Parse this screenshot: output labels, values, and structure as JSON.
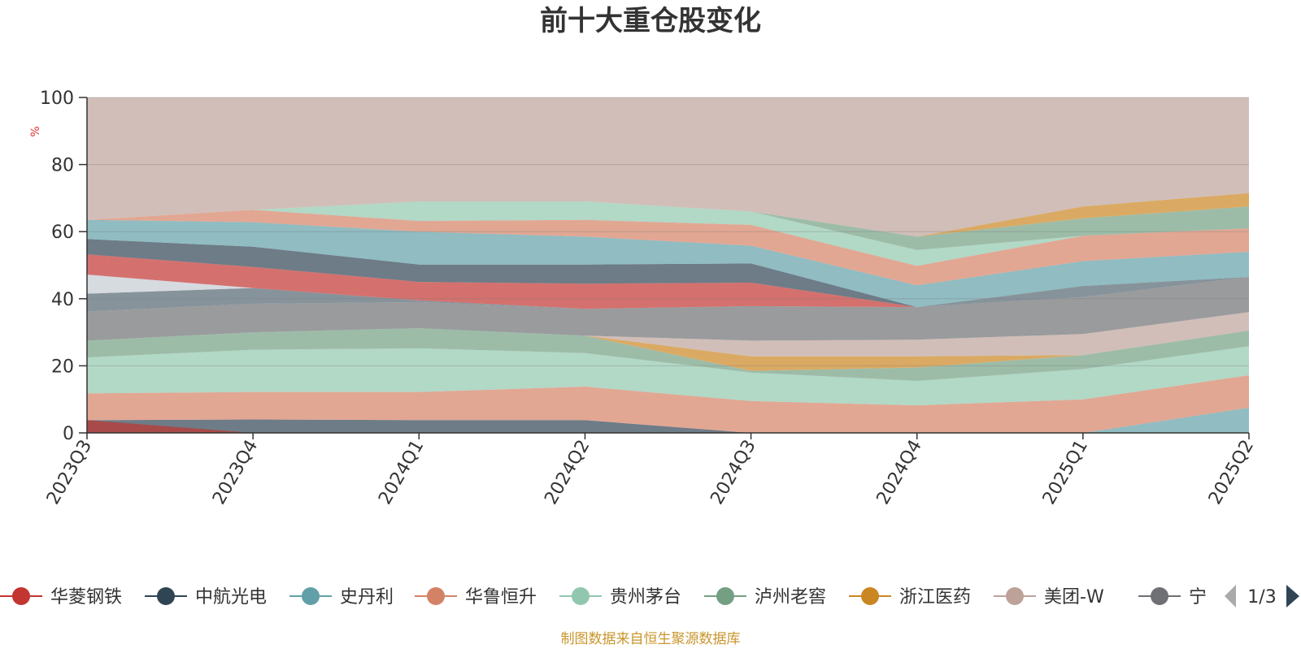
{
  "chart_data": {
    "type": "area",
    "title": "前十大重仓股变化",
    "ylabel": "%",
    "xlabel": "",
    "ylim": [
      0,
      100
    ],
    "yticks": [
      0,
      20,
      40,
      60,
      80,
      100
    ],
    "grid": true,
    "legend_position": "bottom",
    "legend_page": "1/3",
    "footer": "制图数据来自恒生聚源数据库",
    "categories": [
      "2023Q3",
      "2023Q4",
      "2024Q1",
      "2024Q2",
      "2024Q3",
      "2024Q4",
      "2025Q1",
      "2025Q2"
    ],
    "bands": [
      {
        "color": "#61a0a8",
        "opacity": 0.7,
        "lower": [
          0,
          0,
          0,
          0,
          0,
          0,
          0,
          0
        ],
        "upper": [
          0,
          0,
          0,
          0,
          0,
          0,
          0,
          7.5
        ]
      },
      {
        "color": "#2f4554",
        "opacity": 0.7,
        "lower": [
          0,
          0,
          0,
          0,
          0,
          0,
          0,
          0
        ],
        "upper": [
          3.8,
          4,
          3.8,
          3.8,
          0,
          0,
          0,
          0
        ]
      },
      {
        "color": "#c23531",
        "opacity": 0.7,
        "lower": [
          0,
          0,
          0,
          0,
          0,
          0,
          0,
          0
        ],
        "upper": [
          3.8,
          0,
          0,
          0,
          0,
          0,
          0,
          0
        ]
      },
      {
        "color": "#d48265",
        "opacity": 0.7,
        "lower": [
          3.8,
          4,
          3.8,
          3.8,
          0,
          0,
          0,
          7.5
        ],
        "upper": [
          11.8,
          12.2,
          12.2,
          13.8,
          9.5,
          8.2,
          10,
          17.2
        ]
      },
      {
        "color": "#91c7ae",
        "opacity": 0.7,
        "lower": [
          11.8,
          12.2,
          12.2,
          13.8,
          9.5,
          8.2,
          10,
          17.2
        ],
        "upper": [
          22.5,
          24.8,
          25.2,
          23.8,
          18,
          15.5,
          19,
          25.8
        ]
      },
      {
        "color": "#749f83",
        "opacity": 0.7,
        "lower": [
          22.5,
          24.8,
          25.2,
          23.8,
          18,
          15.5,
          19,
          25.8
        ],
        "upper": [
          27.5,
          30,
          31.2,
          29,
          18.5,
          19.5,
          23.2,
          30.5
        ]
      },
      {
        "color": "#ca8622",
        "opacity": 0.7,
        "lower": [
          27.5,
          30,
          31.2,
          29,
          18.5,
          19.5,
          23.2,
          30.5
        ],
        "upper": [
          27.5,
          30,
          31.2,
          29,
          22.8,
          22.8,
          23.2,
          30.5
        ]
      },
      {
        "color": "#bda29a",
        "opacity": 0.7,
        "lower": [
          27.5,
          30,
          31.2,
          29,
          22.8,
          22.8,
          23.2,
          30.5
        ],
        "upper": [
          27.5,
          30,
          31.2,
          29,
          27.5,
          27.8,
          29.5,
          36
        ]
      },
      {
        "color": "#6e7074",
        "opacity": 0.7,
        "lower": [
          27.5,
          30,
          31.2,
          29,
          27.5,
          27.8,
          29.5,
          36
        ],
        "upper": [
          36.2,
          38.5,
          39,
          37,
          37.8,
          37.5,
          40.5,
          46.5
        ]
      },
      {
        "color": "#546570",
        "opacity": 0.7,
        "lower": [
          36.2,
          38.5,
          39,
          37,
          37.8,
          37.5,
          40.5,
          46.5
        ],
        "upper": [
          41.5,
          43.2,
          39.5,
          37,
          37.8,
          37.5,
          43.8,
          46.5
        ]
      },
      {
        "color": "#c4ccd3",
        "opacity": 0.7,
        "lower": [
          41.5,
          43.2,
          39.5,
          37,
          37.8,
          37.5,
          43.8,
          46.5
        ],
        "upper": [
          47.2,
          43.2,
          39.5,
          37,
          37.8,
          37.5,
          43.8,
          46.5
        ]
      },
      {
        "color": "#c23531",
        "opacity": 0.7,
        "lower": [
          47.2,
          43.2,
          39.5,
          37,
          37.8,
          37.5,
          43.8,
          46.5
        ],
        "upper": [
          53.2,
          49.5,
          45,
          44.5,
          44.8,
          37.5,
          43.8,
          46.5
        ]
      },
      {
        "color": "#2f4554",
        "opacity": 0.7,
        "lower": [
          53.2,
          49.5,
          45,
          44.5,
          44.8,
          37.5,
          43.8,
          46.5
        ],
        "upper": [
          57.8,
          55.5,
          50.2,
          50.2,
          50.5,
          37.5,
          43.8,
          46.5
        ]
      },
      {
        "color": "#61a0a8",
        "opacity": 0.7,
        "lower": [
          57.8,
          55.5,
          50.2,
          50.2,
          50.5,
          37.5,
          43.8,
          46.5
        ],
        "upper": [
          63.5,
          62.8,
          60,
          58.5,
          55.8,
          44,
          51.2,
          54
        ]
      },
      {
        "color": "#d48265",
        "opacity": 0.7,
        "lower": [
          63.5,
          62.8,
          60,
          58.5,
          55.8,
          44,
          51.2,
          54
        ],
        "upper": [
          63.5,
          66.5,
          63.2,
          63.5,
          62,
          49.8,
          58.8,
          61
        ]
      },
      {
        "color": "#91c7ae",
        "opacity": 0.7,
        "lower": [
          63.5,
          66.5,
          63.2,
          63.5,
          62,
          49.8,
          58.8,
          61
        ],
        "upper": [
          63.5,
          66.5,
          69,
          69,
          66,
          54.5,
          58.8,
          61
        ]
      },
      {
        "color": "#749f83",
        "opacity": 0.7,
        "lower": [
          63.5,
          66.5,
          69,
          69,
          66,
          54.5,
          58.8,
          61
        ],
        "upper": [
          63.5,
          66.5,
          69,
          69,
          66,
          58.5,
          64,
          67.5
        ]
      },
      {
        "color": "#ca8622",
        "opacity": 0.7,
        "lower": [
          63.5,
          66.5,
          69,
          69,
          66,
          58.5,
          64,
          67.5
        ],
        "upper": [
          63.5,
          66.5,
          69,
          69,
          66,
          58.5,
          67.5,
          71.5
        ]
      },
      {
        "color": "#bda29a",
        "opacity": 0.7,
        "lower": [
          63.5,
          66.5,
          69,
          69,
          66,
          58.5,
          67.5,
          71.5
        ],
        "upper": [
          100,
          100,
          100,
          100,
          100,
          100,
          100,
          100
        ]
      }
    ],
    "legend": [
      {
        "name": "华菱钢铁",
        "color": "#c23531"
      },
      {
        "name": "中航光电",
        "color": "#2f4554"
      },
      {
        "name": "史丹利",
        "color": "#61a0a8"
      },
      {
        "name": "华鲁恒升",
        "color": "#d48265"
      },
      {
        "name": "贵州茅台",
        "color": "#91c7ae"
      },
      {
        "name": "泸州老窖",
        "color": "#749f83"
      },
      {
        "name": "浙江医药",
        "color": "#ca8622"
      },
      {
        "name": "美团-W",
        "color": "#bda29a"
      },
      {
        "name": "宁德",
        "color": "#6e7074"
      }
    ]
  }
}
